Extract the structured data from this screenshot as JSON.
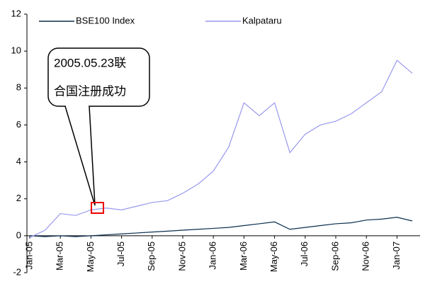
{
  "chart_data": {
    "type": "line",
    "categories": [
      "Jan-05",
      null,
      "Mar-05",
      null,
      "May-05",
      null,
      "Jul-05",
      null,
      "Sep-05",
      null,
      "Nov-05",
      null,
      "Jan-06",
      null,
      "Mar-06",
      null,
      "May-06",
      null,
      "Jul-06",
      null,
      "Sep-06",
      null,
      "Nov-06",
      null,
      "Jan-07",
      null
    ],
    "series": [
      {
        "name": "BSE100 Index",
        "color": "#0b2e4f",
        "values": [
          0,
          -0.05,
          0,
          -0.05,
          0,
          0.05,
          0.1,
          0.15,
          0.2,
          0.25,
          0.3,
          0.35,
          0.4,
          0.45,
          0.55,
          0.65,
          0.75,
          0.35,
          0.45,
          0.55,
          0.65,
          0.7,
          0.85,
          0.9,
          1.0,
          0.8
        ]
      },
      {
        "name": "Kalpataru",
        "color": "#9999ee",
        "values": [
          -0.1,
          0.3,
          1.2,
          1.1,
          1.4,
          1.5,
          1.4,
          1.6,
          1.8,
          1.9,
          2.3,
          2.8,
          3.5,
          4.8,
          7.2,
          6.5,
          7.2,
          4.5,
          5.5,
          6.0,
          6.2,
          6.6,
          7.2,
          7.8,
          9.5,
          8.8
        ]
      }
    ],
    "ylim": [
      -2,
      12
    ],
    "yticks": [
      -2,
      0,
      2,
      4,
      6,
      8,
      10,
      12
    ],
    "annotation": [
      "2005.05.23联",
      "合国注册成功"
    ]
  }
}
